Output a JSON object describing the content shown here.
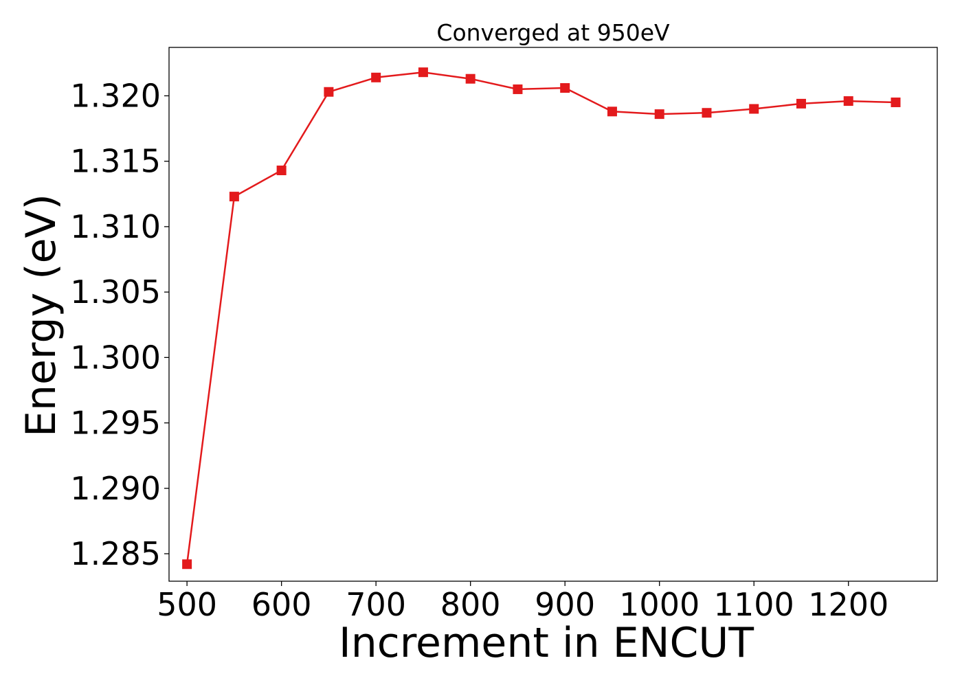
{
  "chart_data": {
    "type": "line",
    "title": "Converged at 950eV",
    "xlabel": "Increment in ENCUT",
    "ylabel": "Energy (eV)",
    "x": [
      500,
      550,
      600,
      650,
      700,
      750,
      800,
      850,
      900,
      950,
      1000,
      1050,
      1100,
      1150,
      1200,
      1250
    ],
    "series": [
      {
        "values": [
          1.2842,
          1.3123,
          1.3143,
          1.3203,
          1.3214,
          1.3218,
          1.3213,
          1.3205,
          1.3206,
          1.3188,
          1.3186,
          1.3187,
          1.319,
          1.3194,
          1.3196,
          1.3195
        ],
        "color": "#e31a1c",
        "marker": "square"
      }
    ],
    "xticks": [
      "500",
      "600",
      "700",
      "800",
      "900",
      "1000",
      "1100",
      "1200"
    ],
    "yticks": [
      "1.285",
      "1.290",
      "1.295",
      "1.300",
      "1.305",
      "1.310",
      "1.315",
      "1.320"
    ],
    "xlim": [
      481,
      1294
    ],
    "ylim": [
      1.2829,
      1.3237
    ],
    "grid": false,
    "legend": false
  }
}
